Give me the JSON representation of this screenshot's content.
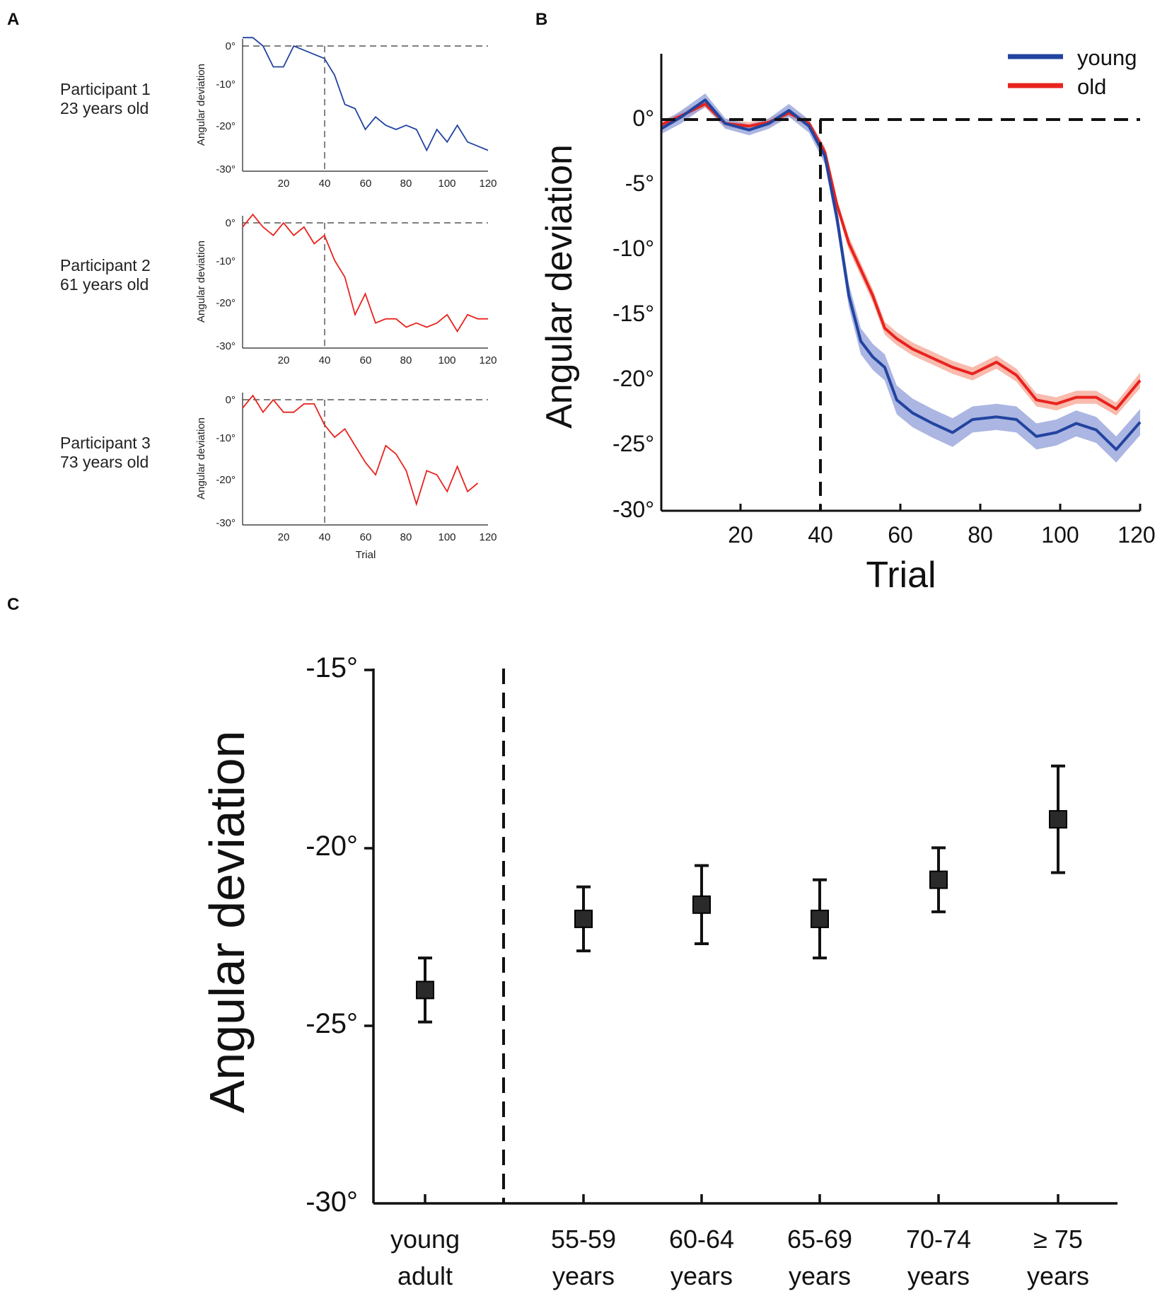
{
  "panel_labels": {
    "a": "A",
    "b": "B",
    "c": "C"
  },
  "colors": {
    "young": "#2244a0",
    "old": "#e8231e",
    "axis": "#111111"
  },
  "chart_data": [
    {
      "id": "A",
      "type": "line",
      "xlabel": "Trial",
      "ylabel": "Angular deviation",
      "xlim": [
        0,
        120
      ],
      "ylim": [
        -30,
        2
      ],
      "xticks": [
        "20",
        "40",
        "60",
        "80",
        "100",
        "120"
      ],
      "yticks": [
        "0°",
        "-10°",
        "-20°",
        "-30°"
      ],
      "panels": [
        {
          "name": "Participant 1",
          "age": "23 years old",
          "color": "young",
          "x": [
            0,
            5,
            10,
            15,
            20,
            25,
            30,
            35,
            40,
            45,
            50,
            55,
            60,
            65,
            70,
            75,
            80,
            85,
            90,
            95,
            100,
            105,
            110,
            115,
            120
          ],
          "y": [
            2,
            2,
            0,
            -5,
            -5,
            0,
            -1,
            -2,
            -3,
            -7,
            -14,
            -15,
            -20,
            -17,
            -19,
            -20,
            -19,
            -20,
            -25,
            -20,
            -23,
            -19,
            -23,
            -24,
            -25
          ]
        },
        {
          "name": "Participant 2",
          "age": "61 years old",
          "color": "old",
          "x": [
            0,
            5,
            10,
            15,
            20,
            25,
            30,
            35,
            40,
            45,
            50,
            55,
            60,
            65,
            70,
            75,
            80,
            85,
            90,
            95,
            100,
            105,
            110,
            115,
            120
          ],
          "y": [
            -1,
            2,
            -1,
            -3,
            0,
            -3,
            -1,
            -5,
            -3,
            -9,
            -13,
            -22,
            -17,
            -24,
            -23,
            -23,
            -25,
            -24,
            -25,
            -24,
            -22,
            -26,
            -22,
            -23,
            -23
          ]
        },
        {
          "name": "Participant 3",
          "age": "73 years old",
          "color": "old",
          "x": [
            0,
            5,
            10,
            15,
            20,
            25,
            30,
            35,
            40,
            45,
            50,
            55,
            60,
            65,
            70,
            75,
            80,
            85,
            90,
            95,
            100,
            105,
            110,
            115
          ],
          "y": [
            -2,
            1,
            -3,
            0,
            -3,
            -3,
            -1,
            -1,
            -6,
            -9,
            -7,
            -11,
            -15,
            -18,
            -11,
            -13,
            -17,
            -25,
            -17,
            -18,
            -22,
            -16,
            -22,
            -20
          ]
        }
      ]
    },
    {
      "id": "B",
      "type": "line",
      "xlabel": "Trial",
      "ylabel": "Angular deviation",
      "xlim": [
        0,
        120
      ],
      "ylim": [
        -30,
        5
      ],
      "xticks": [
        "20",
        "40",
        "60",
        "80",
        "100",
        "120"
      ],
      "yticks": [
        "0°",
        "-5°",
        "-10°",
        "-15°",
        "-20°",
        "-25°",
        "-30°"
      ],
      "legend_position": "top-right",
      "series": [
        {
          "name": "young",
          "color": "young",
          "x": [
            0,
            5,
            11,
            16,
            22,
            27,
            32,
            37,
            41,
            44,
            47,
            50,
            53,
            56,
            59,
            63,
            68,
            73,
            78,
            84,
            89,
            94,
            99,
            104,
            109,
            114,
            120
          ],
          "y": [
            -0.7,
            0.2,
            1.5,
            -0.3,
            -0.8,
            -0.3,
            0.7,
            -0.5,
            -2.8,
            -7.5,
            -13.5,
            -17,
            -18.2,
            -19,
            -21.5,
            -22.5,
            -23.3,
            -24,
            -23,
            -22.8,
            -23,
            -24.3,
            -24,
            -23.3,
            -23.8,
            -25.3,
            -23.2
          ],
          "err": [
            0.4,
            0.5,
            0.5,
            0.4,
            0.4,
            0.4,
            0.5,
            0.5,
            0.6,
            0.8,
            0.9,
            1.0,
            1.0,
            1.0,
            1.1,
            1.1,
            1.1,
            1.1,
            1.0,
            1.0,
            1.0,
            1.0,
            1.0,
            1.0,
            1.0,
            1.0,
            1.0
          ]
        },
        {
          "name": "old",
          "color": "old",
          "x": [
            0,
            5,
            11,
            16,
            22,
            27,
            32,
            37,
            41,
            44,
            47,
            50,
            53,
            56,
            59,
            63,
            68,
            73,
            78,
            84,
            89,
            94,
            99,
            104,
            109,
            114,
            120
          ],
          "y": [
            -0.4,
            0.3,
            1.2,
            -0.3,
            -0.5,
            -0.2,
            0.5,
            -0.3,
            -2.5,
            -6.5,
            -9.5,
            -11.5,
            -13.5,
            -16,
            -16.8,
            -17.6,
            -18.3,
            -19,
            -19.5,
            -18.6,
            -19.6,
            -21.5,
            -21.8,
            -21.3,
            -21.3,
            -22.2,
            -20
          ],
          "err": [
            0.3,
            0.3,
            0.3,
            0.3,
            0.3,
            0.3,
            0.3,
            0.3,
            0.4,
            0.4,
            0.5,
            0.5,
            0.5,
            0.5,
            0.5,
            0.5,
            0.5,
            0.5,
            0.5,
            0.5,
            0.5,
            0.5,
            0.5,
            0.5,
            0.5,
            0.5,
            0.6
          ]
        }
      ]
    },
    {
      "id": "C",
      "type": "scatter",
      "ylabel": "Angular deviation",
      "ylim": [
        -30,
        -15
      ],
      "yticks": [
        "-15°",
        "-20°",
        "-25°",
        "-30°"
      ],
      "categories": [
        {
          "top": "young",
          "bottom": "adult"
        },
        {
          "top": "55-59",
          "bottom": "years"
        },
        {
          "top": "60-64",
          "bottom": "years"
        },
        {
          "top": "65-69",
          "bottom": "years"
        },
        {
          "top": "70-74",
          "bottom": "years"
        },
        {
          "top": "≥ 75",
          "bottom": "years"
        }
      ],
      "values": [
        -24.0,
        -22.0,
        -21.6,
        -22.0,
        -20.9,
        -19.2
      ],
      "errors": [
        0.9,
        0.9,
        1.1,
        1.1,
        0.9,
        1.5
      ]
    }
  ]
}
